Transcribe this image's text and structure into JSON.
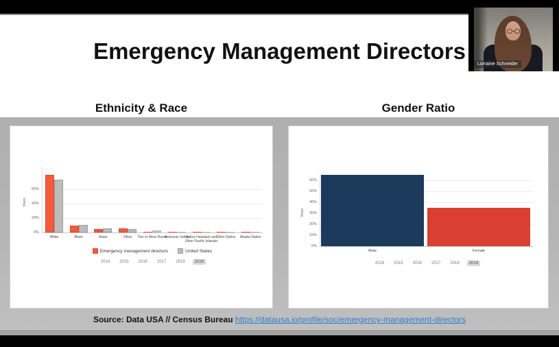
{
  "meeting": {
    "participant_name": "Lorraine Schneider"
  },
  "slide": {
    "title": "Emergency Management Directors",
    "section_headings": [
      "Ethnicity & Race",
      "Gender Ratio"
    ],
    "source": {
      "prefix": "Source: Data USA // Census Bureau ",
      "link_text": "https://datausa.io/profile/soc/emergency-management-directors"
    }
  },
  "chart_data": [
    {
      "type": "bar",
      "title": "Ethnicity & Race",
      "xlabel": "",
      "ylabel": "Share",
      "ylim": [
        0,
        85
      ],
      "yticks_pct": [
        0,
        20,
        40,
        60
      ],
      "grid": true,
      "legend_position": "bottom",
      "categories": [
        "White",
        "Black",
        "Asian",
        "Other",
        "Two or More Races",
        "American Indian",
        "Native Hawaiian and Other Pacific Islander",
        "Other Native",
        "Alaska Native"
      ],
      "series": [
        {
          "name": "Emergency management directors",
          "color": "#f25b3d",
          "border": "#d94b2e",
          "values": [
            80,
            10,
            4.3,
            5.8,
            0.3,
            0.2,
            0.15,
            0.15,
            0.1
          ]
        },
        {
          "name": "United States",
          "color": "#bdbdbd",
          "border": "#9c9c9c",
          "values": [
            73,
            10.7,
            5.6,
            4.6,
            2.6,
            0.9,
            0.4,
            0.5,
            0.25
          ]
        }
      ],
      "years": [
        "2014",
        "2015",
        "2016",
        "2017",
        "2018",
        "2019"
      ],
      "selected_year": "2019"
    },
    {
      "type": "bar",
      "title": "Gender Ratio",
      "xlabel": "",
      "ylabel": "Share",
      "ylim": [
        0,
        70
      ],
      "yticks_pct": [
        0,
        10,
        20,
        30,
        40,
        50,
        60
      ],
      "grid": true,
      "legend_position": "none",
      "categories": [
        "Male",
        "Female"
      ],
      "series": [
        {
          "name": "Share",
          "values": [
            65,
            35
          ],
          "colors": [
            "#1b3a5c",
            "#da4031"
          ]
        }
      ],
      "years": [
        "2014",
        "2015",
        "2016",
        "2017",
        "2018",
        "2019"
      ],
      "selected_year": "2019"
    }
  ],
  "colors": {
    "emd_orange": "#f25b3d",
    "us_gray": "#bdbdbd",
    "male_navy": "#1b3a5c",
    "female_red": "#da4031",
    "link_blue": "#2e7dd1",
    "backdrop_gray": "#b3b3b3"
  }
}
